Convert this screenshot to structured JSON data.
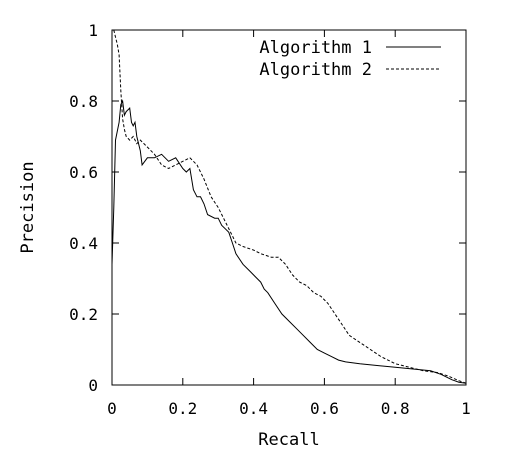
{
  "chart_data": {
    "type": "line",
    "title": "",
    "xlabel": "Recall",
    "ylabel": "Precision",
    "xlim": [
      0,
      1
    ],
    "ylim": [
      0,
      1
    ],
    "xticks": [
      "0",
      "0.2",
      "0.4",
      "0.6",
      "0.8",
      "1"
    ],
    "yticks": [
      "0",
      "0.2",
      "0.4",
      "0.6",
      "0.8",
      "1"
    ],
    "xtick_values": [
      0,
      0.2,
      0.4,
      0.6,
      0.8,
      1
    ],
    "ytick_values": [
      0,
      0.2,
      0.4,
      0.6,
      0.8,
      1
    ],
    "grid": false,
    "legend_position": "top-right",
    "series": [
      {
        "name": "Algorithm 1",
        "style": "solid",
        "color": "#000000",
        "points": [
          [
            0.0,
            0.34
          ],
          [
            0.005,
            0.5
          ],
          [
            0.01,
            0.69
          ],
          [
            0.02,
            0.74
          ],
          [
            0.025,
            0.79
          ],
          [
            0.03,
            0.8
          ],
          [
            0.035,
            0.76
          ],
          [
            0.04,
            0.77
          ],
          [
            0.05,
            0.78
          ],
          [
            0.055,
            0.74
          ],
          [
            0.06,
            0.73
          ],
          [
            0.065,
            0.74
          ],
          [
            0.07,
            0.7
          ],
          [
            0.08,
            0.66
          ],
          [
            0.085,
            0.62
          ],
          [
            0.1,
            0.64
          ],
          [
            0.12,
            0.64
          ],
          [
            0.14,
            0.65
          ],
          [
            0.16,
            0.63
          ],
          [
            0.18,
            0.64
          ],
          [
            0.2,
            0.61
          ],
          [
            0.21,
            0.6
          ],
          [
            0.22,
            0.61
          ],
          [
            0.23,
            0.55
          ],
          [
            0.24,
            0.53
          ],
          [
            0.25,
            0.53
          ],
          [
            0.26,
            0.51
          ],
          [
            0.27,
            0.48
          ],
          [
            0.29,
            0.47
          ],
          [
            0.3,
            0.47
          ],
          [
            0.31,
            0.45
          ],
          [
            0.32,
            0.44
          ],
          [
            0.33,
            0.43
          ],
          [
            0.34,
            0.4
          ],
          [
            0.35,
            0.37
          ],
          [
            0.37,
            0.34
          ],
          [
            0.39,
            0.32
          ],
          [
            0.41,
            0.3
          ],
          [
            0.42,
            0.29
          ],
          [
            0.43,
            0.27
          ],
          [
            0.44,
            0.26
          ],
          [
            0.46,
            0.23
          ],
          [
            0.48,
            0.2
          ],
          [
            0.5,
            0.18
          ],
          [
            0.52,
            0.16
          ],
          [
            0.54,
            0.14
          ],
          [
            0.56,
            0.12
          ],
          [
            0.58,
            0.1
          ],
          [
            0.6,
            0.09
          ],
          [
            0.62,
            0.08
          ],
          [
            0.64,
            0.07
          ],
          [
            0.66,
            0.065
          ],
          [
            0.7,
            0.06
          ],
          [
            0.8,
            0.05
          ],
          [
            0.9,
            0.04
          ],
          [
            0.93,
            0.03
          ],
          [
            0.96,
            0.015
          ],
          [
            0.98,
            0.008
          ],
          [
            1.0,
            0.005
          ]
        ]
      },
      {
        "name": "Algorithm 2",
        "style": "dashed",
        "color": "#000000",
        "points": [
          [
            0.005,
            1.0
          ],
          [
            0.01,
            0.98
          ],
          [
            0.015,
            0.96
          ],
          [
            0.02,
            0.93
          ],
          [
            0.025,
            0.83
          ],
          [
            0.03,
            0.75
          ],
          [
            0.035,
            0.72
          ],
          [
            0.04,
            0.7
          ],
          [
            0.05,
            0.69
          ],
          [
            0.06,
            0.7
          ],
          [
            0.07,
            0.68
          ],
          [
            0.08,
            0.69
          ],
          [
            0.09,
            0.68
          ],
          [
            0.1,
            0.67
          ],
          [
            0.12,
            0.65
          ],
          [
            0.14,
            0.62
          ],
          [
            0.16,
            0.61
          ],
          [
            0.18,
            0.62
          ],
          [
            0.2,
            0.63
          ],
          [
            0.22,
            0.64
          ],
          [
            0.24,
            0.62
          ],
          [
            0.26,
            0.58
          ],
          [
            0.28,
            0.53
          ],
          [
            0.3,
            0.5
          ],
          [
            0.32,
            0.46
          ],
          [
            0.34,
            0.42
          ],
          [
            0.35,
            0.4
          ],
          [
            0.37,
            0.39
          ],
          [
            0.4,
            0.38
          ],
          [
            0.42,
            0.37
          ],
          [
            0.45,
            0.36
          ],
          [
            0.47,
            0.36
          ],
          [
            0.49,
            0.34
          ],
          [
            0.51,
            0.31
          ],
          [
            0.53,
            0.29
          ],
          [
            0.55,
            0.28
          ],
          [
            0.57,
            0.26
          ],
          [
            0.59,
            0.25
          ],
          [
            0.61,
            0.23
          ],
          [
            0.63,
            0.2
          ],
          [
            0.65,
            0.17
          ],
          [
            0.67,
            0.14
          ],
          [
            0.7,
            0.12
          ],
          [
            0.73,
            0.1
          ],
          [
            0.76,
            0.08
          ],
          [
            0.8,
            0.06
          ],
          [
            0.84,
            0.05
          ],
          [
            0.88,
            0.04
          ],
          [
            0.92,
            0.035
          ],
          [
            0.95,
            0.025
          ],
          [
            0.98,
            0.012
          ],
          [
            1.0,
            0.005
          ]
        ]
      }
    ]
  }
}
